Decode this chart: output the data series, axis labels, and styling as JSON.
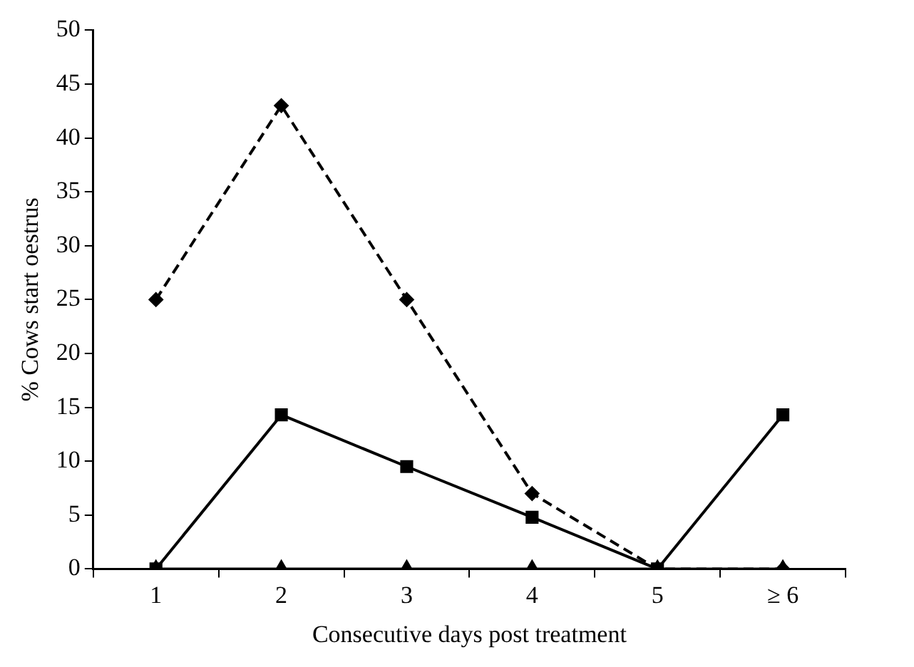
{
  "chart_data": {
    "type": "line",
    "xlabel": "Consecutive days post treatment",
    "ylabel": "% Cows start oestrus",
    "categories": [
      "1",
      "2",
      "3",
      "4",
      "5",
      "≥ 6"
    ],
    "ylim": [
      0,
      50
    ],
    "yticks": [
      0,
      5,
      10,
      15,
      20,
      25,
      30,
      35,
      40,
      45,
      50
    ],
    "grid": false,
    "legend": false,
    "series": [
      {
        "color": "#000000",
        "values": [
          25,
          43,
          25,
          7,
          0,
          0
        ],
        "marker": "diamond",
        "line_style": "dashed"
      },
      {
        "color": "#000000",
        "values": [
          0,
          14.3,
          9.5,
          4.8,
          0,
          14.3
        ],
        "marker": "square",
        "line_style": "solid"
      },
      {
        "color": "#000000",
        "values": [
          0,
          0,
          0,
          0,
          0,
          0
        ],
        "marker": "triangle",
        "line_style": "solid"
      }
    ]
  }
}
